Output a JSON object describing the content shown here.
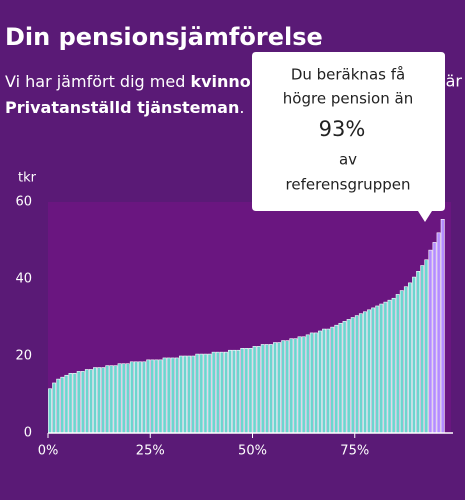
{
  "header": {
    "title": "Din pensionsjämförelse",
    "line1_start": "Vi har jämfört dig med ",
    "line1_bold": "kvinnor",
    "line1_end": "n är",
    "line2_bold": "Privatanställd tjänsteman",
    "line2_end": "."
  },
  "tooltip": {
    "lines": [
      "Du beräknas få",
      "högre pension än"
    ],
    "value": "93%",
    "lines_after": [
      "av",
      "referensgruppen"
    ]
  },
  "chart_data": {
    "type": "bar",
    "y_label": "tkr",
    "ylim": [
      0,
      60
    ],
    "yticks": [
      0,
      20,
      40,
      60
    ],
    "xlim": [
      0,
      100
    ],
    "xticks": [
      {
        "value": 0,
        "label": "0%"
      },
      {
        "value": 25,
        "label": "25%"
      },
      {
        "value": 50,
        "label": "50%"
      },
      {
        "value": 75,
        "label": "75%"
      }
    ],
    "x": [
      0,
      1,
      2,
      3,
      4,
      5,
      6,
      7,
      8,
      9,
      10,
      11,
      12,
      13,
      14,
      15,
      16,
      17,
      18,
      19,
      20,
      21,
      22,
      23,
      24,
      25,
      26,
      27,
      28,
      29,
      30,
      31,
      32,
      33,
      34,
      35,
      36,
      37,
      38,
      39,
      40,
      41,
      42,
      43,
      44,
      45,
      46,
      47,
      48,
      49,
      50,
      51,
      52,
      53,
      54,
      55,
      56,
      57,
      58,
      59,
      60,
      61,
      62,
      63,
      64,
      65,
      66,
      67,
      68,
      69,
      70,
      71,
      72,
      73,
      74,
      75,
      76,
      77,
      78,
      79,
      80,
      81,
      82,
      83,
      84,
      85,
      86,
      87,
      88,
      89,
      90,
      91,
      92,
      93,
      94,
      95,
      96
    ],
    "values": [
      11.5,
      13,
      14,
      14.5,
      15,
      15.5,
      15.5,
      16,
      16,
      16.5,
      16.5,
      17,
      17,
      17,
      17.5,
      17.5,
      17.5,
      18,
      18,
      18,
      18.5,
      18.5,
      18.5,
      18.5,
      19,
      19,
      19,
      19,
      19.5,
      19.5,
      19.5,
      19.5,
      20,
      20,
      20,
      20,
      20.5,
      20.5,
      20.5,
      20.5,
      21,
      21,
      21,
      21,
      21.5,
      21.5,
      21.5,
      22,
      22,
      22,
      22.5,
      22.5,
      23,
      23,
      23,
      23.5,
      23.5,
      24,
      24,
      24.5,
      24.5,
      25,
      25,
      25.5,
      26,
      26,
      26.5,
      27,
      27,
      27.5,
      28,
      28.5,
      29,
      29.5,
      30,
      30.5,
      31,
      31.5,
      32,
      32.5,
      33,
      33.5,
      34,
      34.5,
      35,
      36,
      37,
      38,
      39,
      40.5,
      42,
      43.5,
      45,
      47.5,
      49.5,
      52,
      55.5
    ],
    "colors": [
      "#6dd5cf",
      "#6dd5cf",
      "#6dd5cf",
      "#6dd5cf",
      "#6dd5cf",
      "#6dd5cf",
      "#6dd5cf",
      "#6dd5cf",
      "#6dd5cf",
      "#6dd5cf",
      "#6dd5cf",
      "#6dd5cf",
      "#6dd5cf",
      "#6dd5cf",
      "#6dd5cf",
      "#6dd5cf",
      "#6dd5cf",
      "#6dd5cf",
      "#6dd5cf",
      "#6dd5cf",
      "#6dd5cf",
      "#6dd5cf",
      "#6dd5cf",
      "#6dd5cf",
      "#6dd5cf",
      "#6dd5cf",
      "#6dd5cf",
      "#6dd5cf",
      "#6dd5cf",
      "#6dd5cf",
      "#6dd5cf",
      "#6dd5cf",
      "#6dd5cf",
      "#6dd5cf",
      "#6dd5cf",
      "#6dd5cf",
      "#6dd5cf",
      "#6dd5cf",
      "#6dd5cf",
      "#6dd5cf",
      "#6dd5cf",
      "#6dd5cf",
      "#6dd5cf",
      "#6dd5cf",
      "#6dd5cf",
      "#6dd5cf",
      "#6dd5cf",
      "#6dd5cf",
      "#6dd5cf",
      "#6dd5cf",
      "#6dd5cf",
      "#6dd5cf",
      "#6dd5cf",
      "#6dd5cf",
      "#6dd5cf",
      "#6dd5cf",
      "#6dd5cf",
      "#6dd5cf",
      "#6dd5cf",
      "#6dd5cf",
      "#6dd5cf",
      "#6dd5cf",
      "#6dd5cf",
      "#6dd5cf",
      "#6dd5cf",
      "#6dd5cf",
      "#6dd5cf",
      "#6dd5cf",
      "#6dd5cf",
      "#6dd5cf",
      "#6dd5cf",
      "#6dd5cf",
      "#6dd5cf",
      "#6dd5cf",
      "#6dd5cf",
      "#6dd5cf",
      "#6dd5cf",
      "#6dd5cf",
      "#6dd5cf",
      "#6dd5cf",
      "#6dd5cf",
      "#6dd5cf",
      "#6dd5cf",
      "#6dd5cf",
      "#6dd5cf",
      "#6dd5cf",
      "#6dd5cf",
      "#6dd5cf",
      "#6dd5cf",
      "#6dd5cf",
      "#6dd5cf",
      "#6dd5cf",
      "#6dd5cf",
      "#b48cff",
      "#b48cff",
      "#b48cff",
      "#b48cff"
    ]
  }
}
